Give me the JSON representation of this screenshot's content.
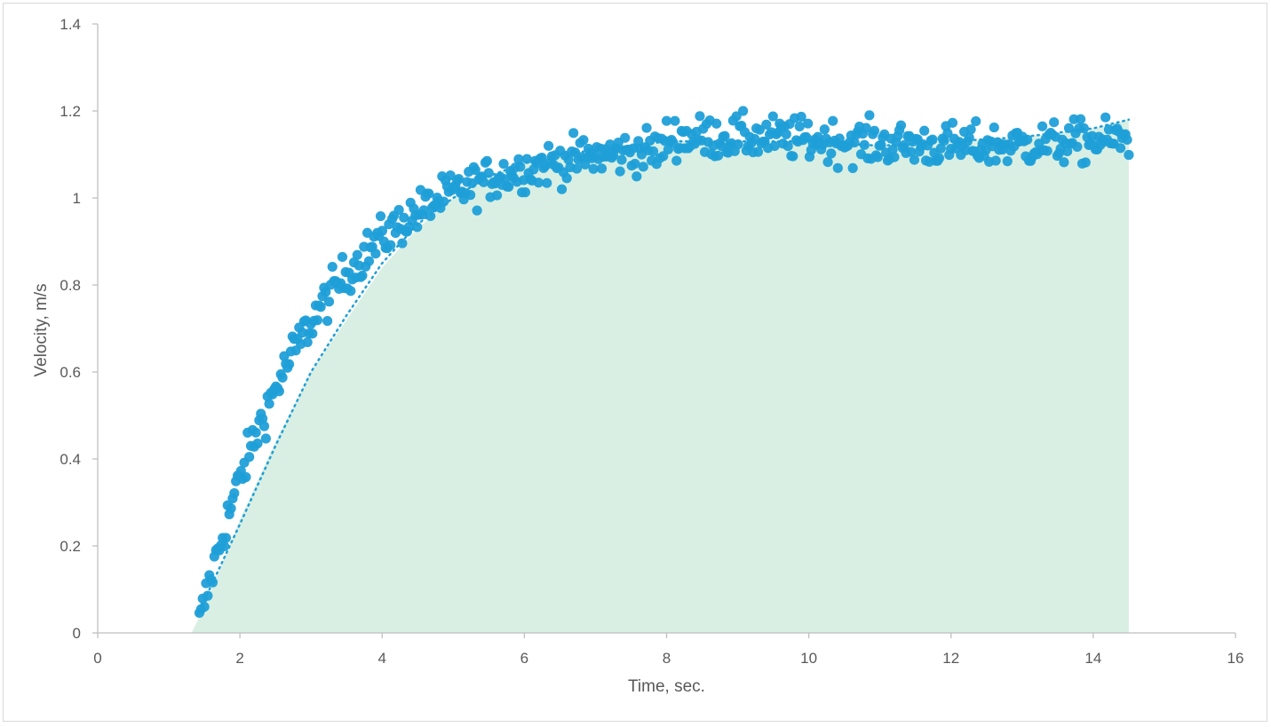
{
  "chart_data": {
    "type": "scatter",
    "title": "",
    "xlabel": "Time, sec.",
    "ylabel": "Velocity, m/s",
    "xlim": [
      0,
      16
    ],
    "ylim": [
      0,
      1.4
    ],
    "x_ticks": [
      "0",
      "2",
      "4",
      "6",
      "8",
      "10",
      "12",
      "14",
      "16"
    ],
    "y_ticks": [
      "0",
      "0.2",
      "0.4",
      "0.6",
      "0.8",
      "1",
      "1.2",
      "1.4"
    ],
    "grid": false,
    "legend": "none",
    "colors": {
      "points": "#1f9fd8",
      "area": "#d9efe3",
      "trendline": "#1f9fd8",
      "axis": "#bfbfbf"
    },
    "area": {
      "x": [
        1.32,
        1.5,
        2.0,
        2.5,
        3.0,
        3.5,
        4.0,
        4.5,
        5.0,
        5.5,
        6.0,
        6.5,
        7.0,
        7.5,
        8.0,
        9.0,
        10.0,
        11.0,
        12.0,
        13.0,
        14.0,
        14.5
      ],
      "y": [
        0.0,
        0.06,
        0.26,
        0.44,
        0.6,
        0.72,
        0.84,
        0.93,
        1.0,
        1.05,
        1.08,
        1.1,
        1.11,
        1.12,
        1.13,
        1.13,
        1.13,
        1.12,
        1.13,
        1.14,
        1.16,
        1.18
      ]
    },
    "trendline": {
      "style": "dotted",
      "x": [
        1.4,
        2.0,
        2.5,
        3.0,
        3.5,
        4.0,
        4.5,
        5.0,
        5.5,
        6.0,
        6.5,
        7.0,
        7.5,
        8.0,
        9.0,
        10.0,
        11.0,
        12.0,
        13.0,
        14.0,
        14.5
      ],
      "y": [
        0.04,
        0.25,
        0.43,
        0.6,
        0.73,
        0.85,
        0.94,
        1.0,
        1.05,
        1.08,
        1.1,
        1.11,
        1.12,
        1.13,
        1.13,
        1.13,
        1.12,
        1.13,
        1.14,
        1.16,
        1.18
      ]
    },
    "series": [
      {
        "name": "",
        "model": {
          "t0": 1.4,
          "v_final": 1.13,
          "tau": 1.6,
          "noise": 0.025,
          "x_start": 1.43,
          "x_end": 14.5,
          "count": 560
        }
      }
    ]
  }
}
